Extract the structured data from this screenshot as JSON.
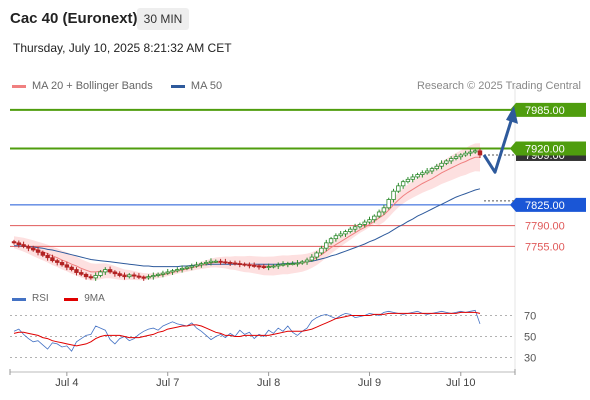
{
  "header": {
    "instrument": "Cac 40 (Euronext)",
    "timeframe": "30 MIN",
    "timestamp": "Thursday, July 10, 2025 8:21:32 AM CET"
  },
  "legend": {
    "ma20_label": "MA 20 + Bollinger Bands",
    "ma20_color": "#f08080",
    "ma50_label": "MA 50",
    "ma50_color": "#2e5a9c",
    "copyright": "Research © 2025 Trading Central"
  },
  "rsi_legend": {
    "rsi_label": "RSI",
    "rsi_color": "#4472c4",
    "ma_label": "9MA",
    "ma_color": "#e00000"
  },
  "colors": {
    "resistance": "#4f9d0e",
    "pivot": "#1a56d6",
    "support": "#e05a5a",
    "candle_up": "#2e8b2e",
    "candle_down": "#b22222",
    "bollinger_fill": "#fde0e0",
    "arrow": "#2e5a9c",
    "current_price_bg": "#333333"
  },
  "chart_data": [
    {
      "type": "candlestick",
      "title": "Cac 40 (Euronext)",
      "x_ticks": [
        "Jul 4",
        "Jul 7",
        "Jul 8",
        "Jul 9",
        "Jul 10"
      ],
      "ylim": [
        7690,
        8010
      ],
      "levels": [
        {
          "value": 7985.0,
          "label": "7985.00",
          "kind": "resistance"
        },
        {
          "value": 7920.0,
          "label": "7920.00",
          "kind": "resistance"
        },
        {
          "value": 7825.0,
          "label": "7825.00",
          "kind": "pivot"
        },
        {
          "value": 7790.0,
          "label": "7790.00",
          "kind": "support"
        },
        {
          "value": 7755.0,
          "label": "7755.00",
          "kind": "support"
        }
      ],
      "current_price": {
        "value": 7909.0,
        "label": "7909.00"
      },
      "close": [
        7761,
        7758,
        7755,
        7752,
        7749,
        7745,
        7740,
        7736,
        7731,
        7728,
        7724,
        7720,
        7716,
        7711,
        7708,
        7704,
        7702,
        7706,
        7712,
        7716,
        7712,
        7709,
        7706,
        7704,
        7707,
        7705,
        7703,
        7702,
        7704,
        7706,
        7708,
        7710,
        7712,
        7714,
        7716,
        7718,
        7720,
        7722,
        7724,
        7726,
        7728,
        7730,
        7730,
        7729,
        7728,
        7727,
        7726,
        7725,
        7724,
        7723,
        7722,
        7721,
        7720,
        7721,
        7722,
        7724,
        7725,
        7726,
        7726,
        7727,
        7729,
        7732,
        7737,
        7744,
        7752,
        7761,
        7768,
        7773,
        7776,
        7780,
        7784,
        7788,
        7792,
        7796,
        7800,
        7806,
        7813,
        7820,
        7834,
        7848,
        7857,
        7864,
        7868,
        7872,
        7876,
        7879,
        7882,
        7886,
        7890,
        7895,
        7899,
        7903,
        7906,
        7909,
        7912,
        7914,
        7916,
        7909
      ],
      "ma20": [
        7762,
        7760,
        7758,
        7755,
        7752,
        7749,
        7746,
        7743,
        7739,
        7736,
        7732,
        7729,
        7725,
        7722,
        7718,
        7715,
        7712,
        7712,
        7713,
        7714,
        7713,
        7711,
        7709,
        7707,
        7707,
        7706,
        7705,
        7704,
        7704,
        7705,
        7706,
        7707,
        7709,
        7711,
        7713,
        7715,
        7717,
        7719,
        7721,
        7723,
        7725,
        7727,
        7728,
        7728,
        7728,
        7727,
        7727,
        7726,
        7725,
        7725,
        7724,
        7723,
        7722,
        7722,
        7722,
        7723,
        7724,
        7724,
        7725,
        7726,
        7727,
        7729,
        7732,
        7736,
        7741,
        7747,
        7753,
        7758,
        7763,
        7768,
        7773,
        7778,
        7783,
        7787,
        7792,
        7797,
        7803,
        7808,
        7816,
        7825,
        7833,
        7840,
        7846,
        7851,
        7856,
        7861,
        7865,
        7869,
        7874,
        7879,
        7883,
        7887,
        7891,
        7895,
        7898,
        7902,
        7905,
        7905
      ],
      "ma50": [
        7756,
        7756,
        7755,
        7755,
        7754,
        7753,
        7752,
        7750,
        7749,
        7747,
        7745,
        7743,
        7741,
        7739,
        7737,
        7735,
        7733,
        7732,
        7731,
        7730,
        7729,
        7728,
        7727,
        7726,
        7725,
        7724,
        7723,
        7722,
        7722,
        7721,
        7721,
        7721,
        7721,
        7721,
        7721,
        7722,
        7722,
        7723,
        7723,
        7724,
        7724,
        7725,
        7725,
        7725,
        7725,
        7725,
        7725,
        7725,
        7725,
        7725,
        7725,
        7725,
        7725,
        7725,
        7725,
        7725,
        7726,
        7726,
        7727,
        7727,
        7728,
        7729,
        7730,
        7732,
        7734,
        7736,
        7739,
        7741,
        7744,
        7747,
        7750,
        7753,
        7756,
        7759,
        7763,
        7766,
        7770,
        7774,
        7778,
        7783,
        7788,
        7792,
        7797,
        7801,
        7806,
        7810,
        7814,
        7818,
        7822,
        7826,
        7830,
        7834,
        7838,
        7841,
        7844,
        7847,
        7850,
        7852
      ],
      "forecast_path": [
        7909,
        7880,
        7985
      ]
    },
    {
      "type": "line",
      "title": "RSI",
      "ylim": [
        20,
        80
      ],
      "y_ticks": [
        30,
        50,
        70
      ],
      "series": [
        {
          "name": "RSI",
          "values": [
            55,
            57,
            52,
            48,
            45,
            46,
            42,
            38,
            44,
            43,
            40,
            41,
            36,
            45,
            48,
            51,
            52,
            60,
            58,
            56,
            47,
            43,
            48,
            50,
            46,
            48,
            52,
            55,
            57,
            58,
            56,
            60,
            62,
            64,
            62,
            61,
            60,
            63,
            58,
            55,
            51,
            47,
            50,
            52,
            49,
            53,
            50,
            56,
            52,
            54,
            48,
            52,
            50,
            56,
            53,
            58,
            55,
            60,
            54,
            51,
            55,
            58,
            65,
            68,
            70,
            71,
            69,
            67,
            70,
            72,
            71,
            68,
            69,
            70,
            72,
            71,
            70,
            73,
            74,
            73,
            72,
            71,
            72,
            73,
            74,
            72,
            71,
            72,
            73,
            74,
            73,
            72,
            73,
            74,
            73,
            74,
            75,
            62
          ]
        },
        {
          "name": "9MA",
          "values": [
            53,
            54,
            54,
            53,
            52,
            51,
            49,
            48,
            46,
            45,
            44,
            43,
            42,
            41,
            42,
            43,
            45,
            48,
            50,
            51,
            51,
            51,
            51,
            50,
            49,
            49,
            49,
            50,
            51,
            52,
            54,
            55,
            57,
            58,
            59,
            60,
            60,
            61,
            61,
            60,
            58,
            56,
            54,
            53,
            51,
            51,
            50,
            50,
            51,
            51,
            51,
            51,
            51,
            51,
            52,
            53,
            54,
            55,
            55,
            55,
            55,
            56,
            57,
            59,
            61,
            63,
            65,
            67,
            68,
            69,
            70,
            70,
            70,
            70,
            70,
            71,
            71,
            71,
            72,
            72,
            72,
            72,
            72,
            72,
            72,
            72,
            72,
            72,
            72,
            72,
            72,
            72,
            72,
            73,
            73,
            73,
            73,
            72
          ]
        }
      ]
    }
  ]
}
